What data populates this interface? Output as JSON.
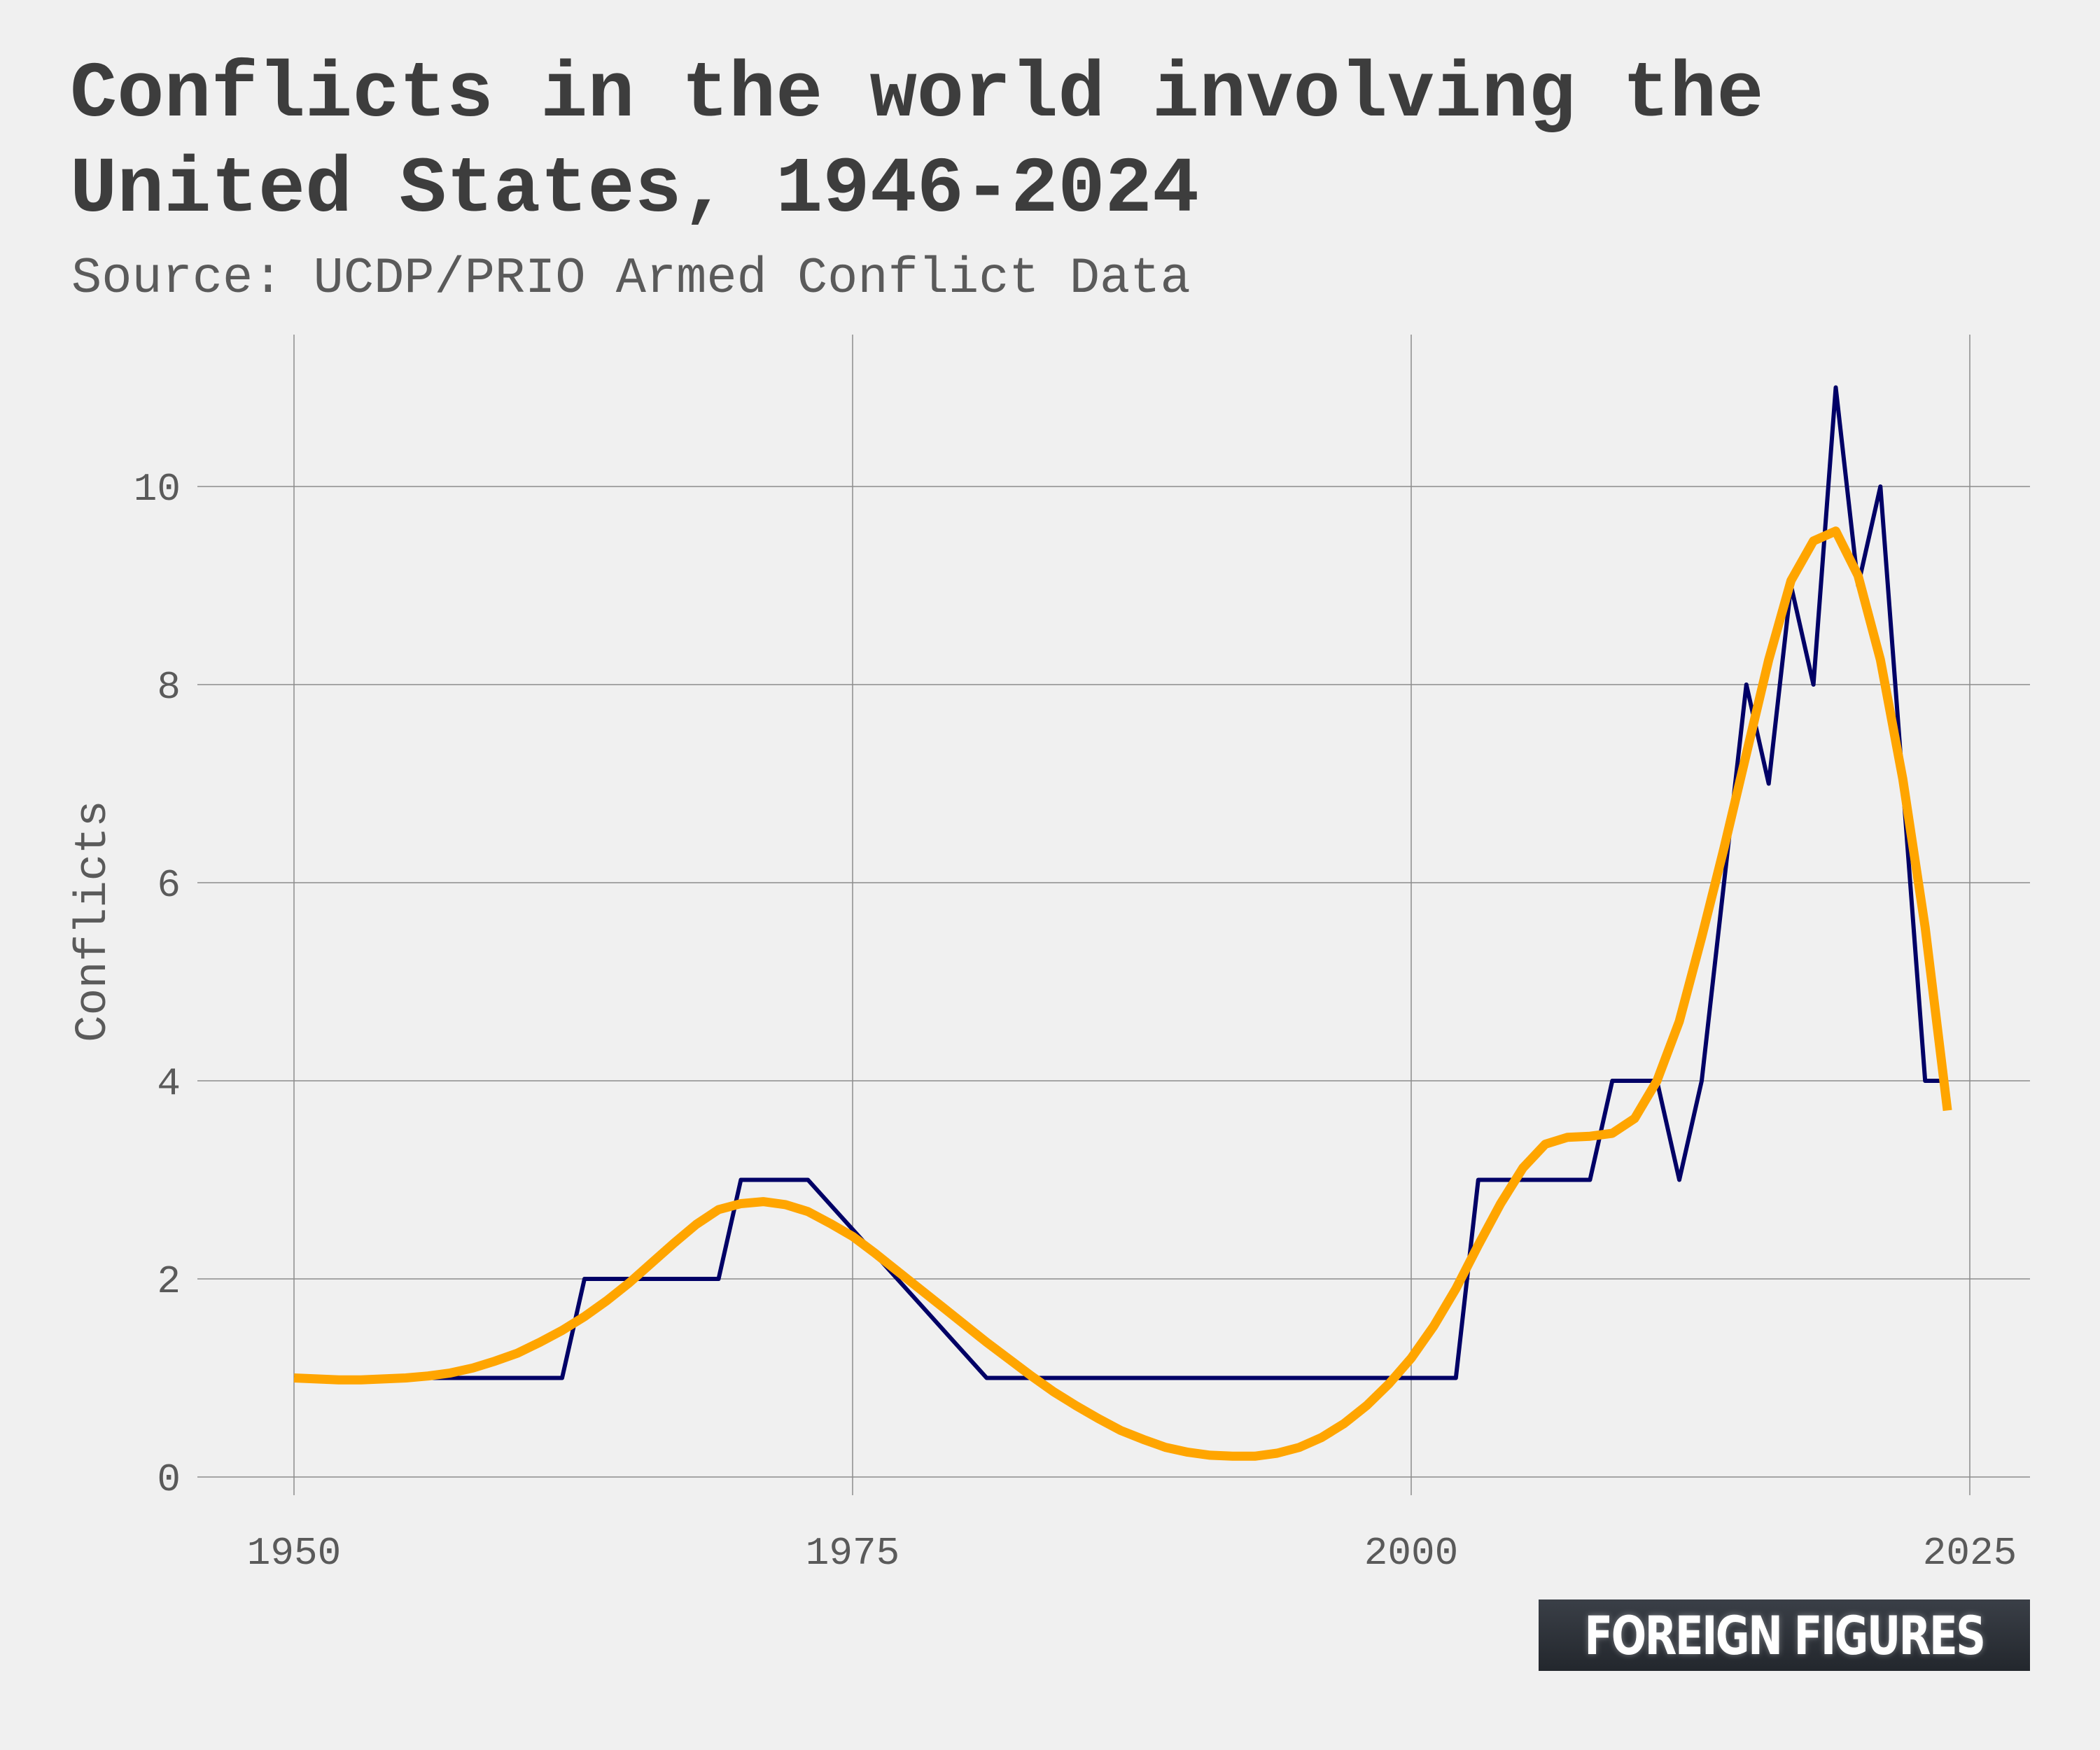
{
  "chart_data": {
    "type": "line",
    "title": "Conflicts in the world involving the United States, 1946-2024",
    "subtitle": "Source: UCDP/PRIO Armed Conflict Data",
    "xlabel": "",
    "ylabel": "Conflicts",
    "xlim": [
      1950,
      2025
    ],
    "ylim": [
      0,
      11
    ],
    "x_ticks": [
      "1950",
      "1975",
      "2000",
      "2025"
    ],
    "y_ticks": [
      "0",
      "2",
      "4",
      "6",
      "8",
      "10"
    ],
    "grid": true,
    "colors": {
      "conflicts": "#000066",
      "trend": "#ffa500"
    },
    "series": [
      {
        "x": [
          1950,
          1951,
          1952,
          1953,
          1954,
          1955,
          1956,
          1957,
          1958,
          1959,
          1960,
          1961,
          1962,
          1963,
          1964,
          1965,
          1966,
          1967,
          1968,
          1969,
          1970,
          1971,
          1972,
          1973,
          1974,
          1975,
          1976,
          1977,
          1978,
          1979,
          1980,
          1981,
          1982,
          1983,
          1984,
          1985,
          1986,
          1987,
          1988,
          1989,
          1990,
          1991,
          1992,
          1993,
          1994,
          1995,
          1996,
          1997,
          1998,
          1999,
          2000,
          2001,
          2002,
          2003,
          2004,
          2005,
          2006,
          2007,
          2008,
          2009,
          2010,
          2011,
          2012,
          2013,
          2014,
          2015,
          2016,
          2017,
          2018,
          2019,
          2020,
          2021,
          2022,
          2023,
          2024
        ],
        "values": [
          1,
          1,
          1,
          1,
          1,
          1,
          1,
          1,
          1,
          1,
          1,
          1,
          1,
          2,
          2,
          2,
          2,
          2,
          2,
          2,
          3,
          3,
          3,
          3,
          2.75,
          2.5,
          2.25,
          2,
          1.75,
          1.5,
          1.25,
          1,
          1,
          1,
          1,
          1,
          1,
          1,
          1,
          1,
          1,
          1,
          1,
          1,
          1,
          1,
          1,
          1,
          1,
          1,
          1,
          1,
          1,
          3,
          3,
          3,
          3,
          3,
          3,
          4,
          4,
          4,
          3,
          4,
          6,
          8,
          7,
          9,
          8,
          11,
          9,
          10,
          7,
          4,
          4
        ]
      },
      {
        "x": [
          1950,
          1951,
          1952,
          1953,
          1954,
          1955,
          1956,
          1957,
          1958,
          1959,
          1960,
          1961,
          1962,
          1963,
          1964,
          1965,
          1966,
          1967,
          1968,
          1969,
          1970,
          1971,
          1972,
          1973,
          1974,
          1975,
          1976,
          1977,
          1978,
          1979,
          1980,
          1981,
          1982,
          1983,
          1984,
          1985,
          1986,
          1987,
          1988,
          1989,
          1990,
          1991,
          1992,
          1993,
          1994,
          1995,
          1996,
          1997,
          1998,
          1999,
          2000,
          2001,
          2002,
          2003,
          2004,
          2005,
          2006,
          2007,
          2008,
          2009,
          2010,
          2011,
          2012,
          2013,
          2014,
          2015,
          2016,
          2017,
          2018,
          2019,
          2020,
          2021,
          2022,
          2023,
          2024
        ],
        "values": [
          1.0,
          0.99,
          0.98,
          0.98,
          0.99,
          1.0,
          1.02,
          1.05,
          1.1,
          1.17,
          1.25,
          1.36,
          1.48,
          1.62,
          1.78,
          1.96,
          2.16,
          2.36,
          2.55,
          2.7,
          2.76,
          2.78,
          2.75,
          2.68,
          2.56,
          2.43,
          2.26,
          2.08,
          1.9,
          1.72,
          1.54,
          1.36,
          1.19,
          1.02,
          0.86,
          0.72,
          0.59,
          0.47,
          0.38,
          0.3,
          0.25,
          0.22,
          0.21,
          0.21,
          0.24,
          0.3,
          0.4,
          0.54,
          0.72,
          0.94,
          1.2,
          1.52,
          1.9,
          2.34,
          2.76,
          3.12,
          3.36,
          3.43,
          3.44,
          3.47,
          3.62,
          4.0,
          4.6,
          5.45,
          6.35,
          7.3,
          8.25,
          9.05,
          9.45,
          9.55,
          9.1,
          8.25,
          7.05,
          5.55,
          3.7
        ]
      }
    ]
  },
  "brand": {
    "logo_text": "FOREIGN FIGURES"
  }
}
